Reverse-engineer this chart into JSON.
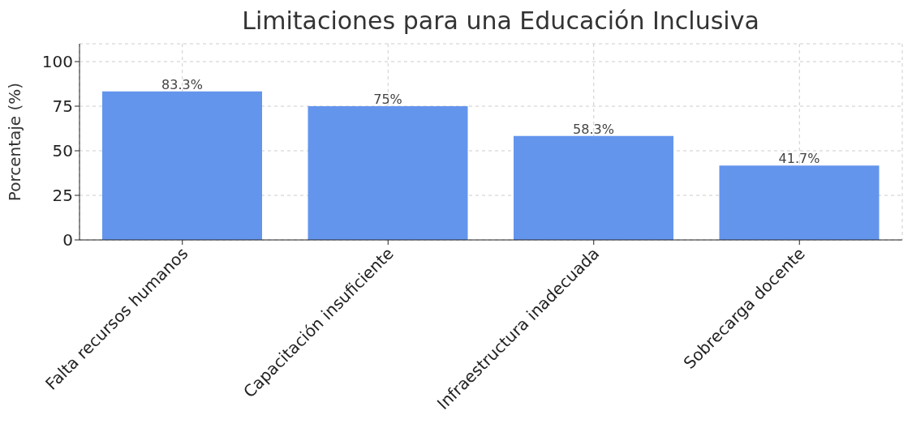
{
  "chart_data": {
    "type": "bar",
    "title": "Limitaciones para una Educación Inclusiva",
    "ylabel": "Porcentaje (%)",
    "categories": [
      "Falta recursos humanos",
      "Capacitación insuficiente",
      "Infraestructura inadecuada",
      "Sobrecarga docente"
    ],
    "values": [
      83.3,
      75,
      58.3,
      41.7
    ],
    "value_labels": [
      "83.3%",
      "75%",
      "58.3%",
      "41.7%"
    ],
    "color": "#6495ed",
    "ylim": [
      0,
      110
    ],
    "yticks": [
      0,
      25,
      50,
      75,
      100
    ],
    "grid": true
  }
}
